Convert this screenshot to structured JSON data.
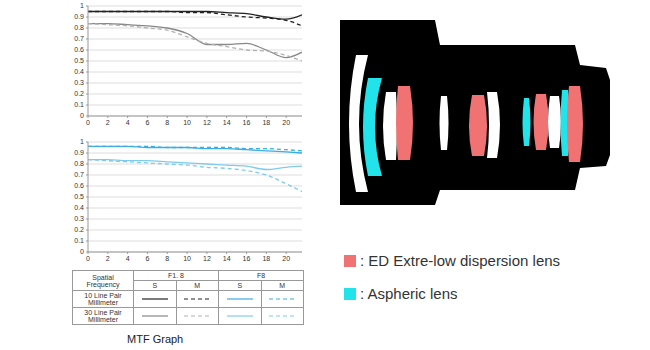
{
  "chart_data": [
    {
      "type": "line",
      "x": [
        0,
        2,
        4,
        6,
        8,
        10,
        12,
        14,
        16,
        18,
        20,
        21.6
      ],
      "xlim": [
        0,
        21.6
      ],
      "xticks": [
        0,
        2,
        4,
        6,
        8,
        10,
        12,
        14,
        16,
        18,
        20
      ],
      "ylim": [
        0,
        1
      ],
      "yticks": [
        0,
        0.1,
        0.2,
        0.3,
        0.4,
        0.5,
        0.6,
        0.7,
        0.8,
        0.9,
        1
      ],
      "grid": true,
      "series": [
        {
          "color": "#222222",
          "line_style": "solid",
          "values": [
            0.95,
            0.95,
            0.95,
            0.95,
            0.95,
            0.95,
            0.95,
            0.94,
            0.93,
            0.9,
            0.88,
            0.92
          ]
        },
        {
          "color": "#222222",
          "line_style": "dashed",
          "values": [
            0.95,
            0.95,
            0.95,
            0.95,
            0.95,
            0.94,
            0.94,
            0.92,
            0.9,
            0.89,
            0.87,
            0.82
          ]
        },
        {
          "color": "#888888",
          "line_style": "solid",
          "values": [
            0.84,
            0.84,
            0.83,
            0.82,
            0.8,
            0.75,
            0.65,
            0.65,
            0.66,
            0.6,
            0.53,
            0.58
          ]
        },
        {
          "color": "#b0b0b0",
          "line_style": "dashed",
          "values": [
            0.84,
            0.83,
            0.82,
            0.8,
            0.78,
            0.72,
            0.66,
            0.63,
            0.6,
            0.59,
            0.55,
            0.5
          ]
        }
      ]
    },
    {
      "type": "line",
      "x": [
        0,
        2,
        4,
        6,
        8,
        10,
        12,
        14,
        16,
        18,
        20,
        21.6
      ],
      "xlim": [
        0,
        21.6
      ],
      "xticks": [
        0,
        2,
        4,
        6,
        8,
        10,
        12,
        14,
        16,
        18,
        20
      ],
      "ylim": [
        0,
        1
      ],
      "yticks": [
        0,
        0.1,
        0.2,
        0.3,
        0.4,
        0.5,
        0.6,
        0.7,
        0.8,
        0.9,
        1
      ],
      "grid": true,
      "series": [
        {
          "color": "#3aaee0",
          "line_style": "solid",
          "values": [
            0.96,
            0.96,
            0.96,
            0.95,
            0.95,
            0.95,
            0.94,
            0.94,
            0.93,
            0.92,
            0.91,
            0.9
          ]
        },
        {
          "color": "#3aaee0",
          "line_style": "dashed",
          "values": [
            0.96,
            0.96,
            0.96,
            0.96,
            0.95,
            0.95,
            0.95,
            0.95,
            0.94,
            0.94,
            0.93,
            0.92
          ]
        },
        {
          "color": "#7ecbee",
          "line_style": "solid",
          "values": [
            0.84,
            0.84,
            0.83,
            0.83,
            0.82,
            0.81,
            0.8,
            0.79,
            0.78,
            0.75,
            0.77,
            0.78
          ]
        },
        {
          "color": "#7ecbee",
          "line_style": "dashed",
          "values": [
            0.84,
            0.83,
            0.82,
            0.81,
            0.8,
            0.79,
            0.77,
            0.76,
            0.74,
            0.7,
            0.62,
            0.55
          ]
        }
      ]
    }
  ],
  "legend_table": {
    "corner": "Spatial Frequency",
    "columns": [
      "F1. 8",
      "F8"
    ],
    "subcolumns": [
      "S",
      "M"
    ],
    "rows": [
      "10 Line Pair Millimeter",
      "30 Line Pair Millimeter"
    ]
  },
  "caption": "MTF Graph",
  "lens_legend": [
    {
      "label": ": ED Extre-low dispersion lens",
      "color": "#f07272"
    },
    {
      "label": ": Aspheric lens",
      "color": "#22e2ea"
    }
  ]
}
